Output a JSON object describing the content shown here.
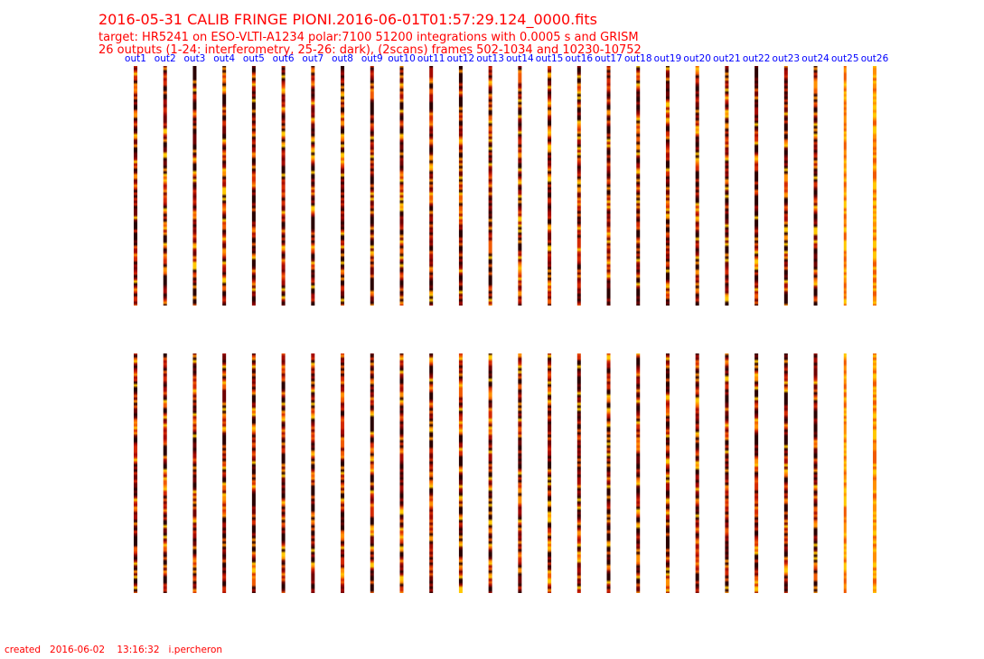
{
  "header": {
    "title": "2016-05-31 CALIB FRINGE PIONI.2016-06-01T01:57:29.124_0000.fits",
    "lines": [
      "target: HR5241 on ESO-VLTI-A1234 polar:7100 51200 integrations with 0.0005 s and GRISM",
      "26 outputs (1-24: interferometry, 25-26: dark), (2scans) frames 502-1034 and 10230-10752"
    ]
  },
  "outputs": [
    "out1",
    "out2",
    "out3",
    "out4",
    "out5",
    "out6",
    "out7",
    "out8",
    "out9",
    "out10",
    "out11",
    "out12",
    "out13",
    "out14",
    "out15",
    "out16",
    "out17",
    "out18",
    "out19",
    "out20",
    "out21",
    "out22",
    "out23",
    "out24",
    "out25",
    "out26"
  ],
  "footer": "created   2016-06-02    13:16:32   i.percheron"
}
